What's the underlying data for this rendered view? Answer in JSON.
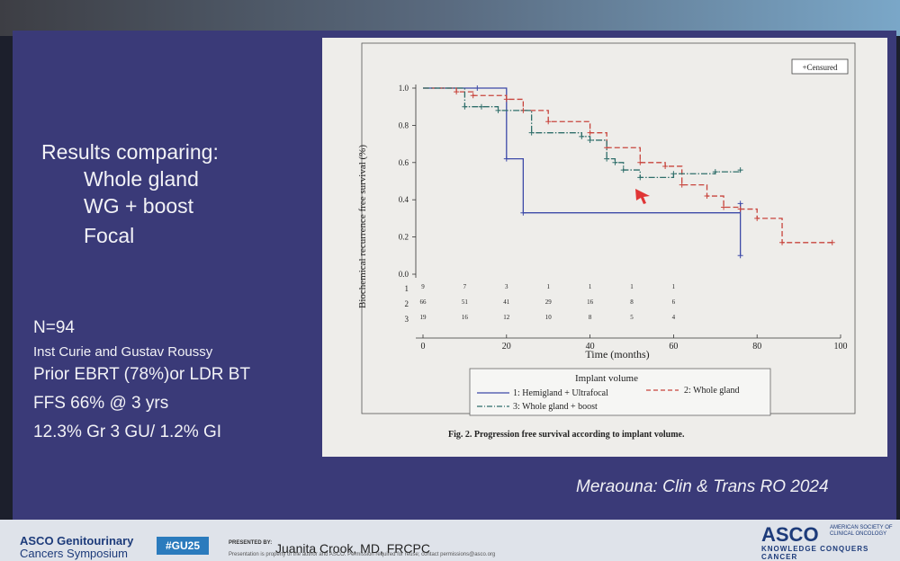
{
  "slide": {
    "results_heading": "Results comparing:",
    "results_items": [
      "Whole gland",
      "WG + boost",
      "Focal"
    ],
    "n_line": "N=94",
    "institutions": "Inst Curie and Gustav Roussy",
    "prior": "Prior EBRT (78%)or LDR BT",
    "ffs": "FFS 66% @ 3 yrs",
    "toxicity": "12.3% Gr 3 GU/ 1.2% GI",
    "citation": "Meraouna: Clin & Trans RO 2024"
  },
  "footer": {
    "asco_line1": "ASCO Genitourinary",
    "asco_line2": "Cancers Symposium",
    "hashtag": "#GU25",
    "presented_by": "PRESENTED BY:",
    "presenter": "Juanita Crook, MD, FRCPC",
    "permission_note": "Presentation is property of the author and ASCO. Permission required for reuse; contact permissions@asco.org",
    "logo": "ASCO",
    "society": [
      "AMERICAN SOCIETY OF",
      "CLINICAL ONCOLOGY"
    ],
    "tagline": "KNOWLEDGE CONQUERS CANCER"
  },
  "chart_data": {
    "type": "line",
    "subtype": "kaplan-meier step curves",
    "title": "",
    "caption": "Fig. 2. Progression free survival according to implant volume.",
    "xlabel": "Time (months)",
    "ylabel": "Biochemical recurrence free survival (%)",
    "xlim": [
      0,
      100
    ],
    "ylim": [
      0,
      1.0
    ],
    "xticks": [
      0,
      20,
      40,
      60,
      80,
      100
    ],
    "yticks": [
      "0.0",
      "0.2",
      "0.4",
      "0.6",
      "0.8",
      "1.0"
    ],
    "censored_legend": "+Censured",
    "legend_title": "Implant volume",
    "series": [
      {
        "name": "1: Hemigland + Ultrafocal",
        "color": "#3d4aa8",
        "style": "solid",
        "x": [
          0,
          13,
          20,
          24,
          76,
          76
        ],
        "y": [
          1.0,
          1.0,
          0.62,
          0.33,
          0.38,
          0.1
        ]
      },
      {
        "name": "2: Whole gland",
        "color": "#c8443c",
        "style": "dashed",
        "x": [
          0,
          8,
          12,
          20,
          24,
          30,
          40,
          44,
          52,
          58,
          62,
          68,
          72,
          76,
          80,
          86,
          98
        ],
        "y": [
          1.0,
          0.98,
          0.96,
          0.94,
          0.88,
          0.82,
          0.76,
          0.68,
          0.6,
          0.58,
          0.48,
          0.42,
          0.36,
          0.35,
          0.3,
          0.17,
          0.17
        ]
      },
      {
        "name": "3: Whole gland + boost",
        "color": "#2f6e6a",
        "style": "dashdot",
        "x": [
          0,
          10,
          14,
          18,
          26,
          38,
          40,
          44,
          46,
          48,
          52,
          60,
          70,
          76
        ],
        "y": [
          1.0,
          0.9,
          0.9,
          0.88,
          0.76,
          0.74,
          0.72,
          0.62,
          0.6,
          0.56,
          0.52,
          0.54,
          0.55,
          0.56
        ]
      }
    ],
    "risk_table": {
      "row_labels": [
        "1",
        "2",
        "3"
      ],
      "times": [
        0,
        10,
        20,
        30,
        40,
        50,
        60
      ],
      "rows": [
        [
          "9",
          "7",
          "3",
          "1",
          "1",
          "1",
          "1"
        ],
        [
          "66",
          "51",
          "41",
          "29",
          "16",
          "8",
          "6"
        ],
        [
          "19",
          "16",
          "12",
          "10",
          "8",
          "5",
          "4"
        ]
      ]
    },
    "grid": false,
    "legend_position": "bottom"
  }
}
